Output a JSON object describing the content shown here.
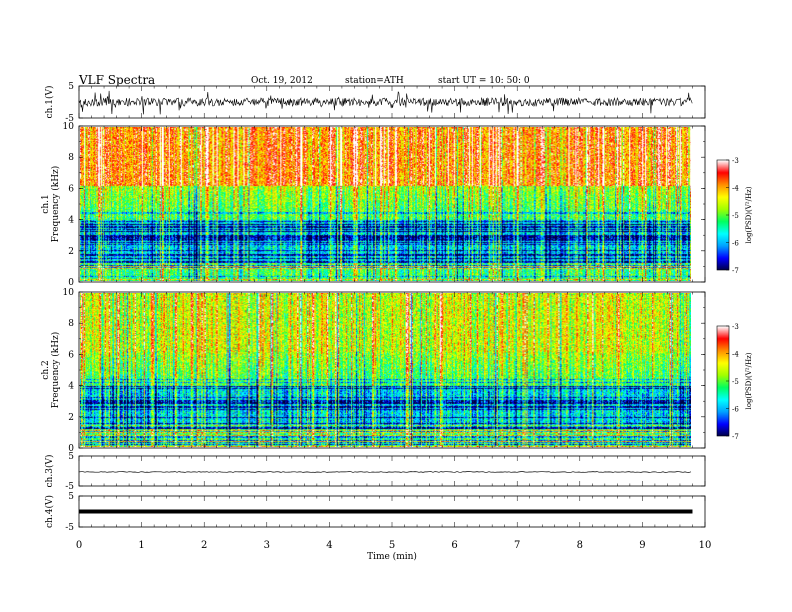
{
  "header": {
    "title": "VLF  Spectra",
    "date": "Oct. 19, 2012",
    "station": "station=ATH",
    "start": "start  UT  =    10: 50: 0"
  },
  "chart_data": [
    {
      "type": "line",
      "panel": "ch1-waveform",
      "ylabel": "ch.1(V)",
      "yticks": [
        "5",
        "-5"
      ],
      "ylim": [
        -5,
        5
      ],
      "xlim": [
        0,
        10
      ],
      "x_end": 9.8,
      "color": "#000000"
    },
    {
      "type": "heatmap",
      "panel": "ch1-spectrogram",
      "ylabel": "ch.1\nFrequency  (kHz)",
      "ylabel_lines": [
        "ch.1",
        "Frequency  (kHz)"
      ],
      "yticks": [
        "0",
        "2",
        "4",
        "6",
        "8",
        "10"
      ],
      "ylim": [
        0,
        10
      ],
      "xlim": [
        0,
        10
      ],
      "x_end": 9.8,
      "colorbar": {
        "label": "log(PSD)(V²/Hz)",
        "ticks": [
          "-3",
          "-4",
          "-5",
          "-6",
          "-7"
        ],
        "range": [
          -7,
          -3
        ]
      }
    },
    {
      "type": "heatmap",
      "panel": "ch2-spectrogram",
      "ylabel": "ch.2\nFrequency  (kHz)",
      "ylabel_lines": [
        "ch.2",
        "Frequency  (kHz)"
      ],
      "yticks": [
        "0",
        "2",
        "4",
        "6",
        "8",
        "10"
      ],
      "ylim": [
        0,
        10
      ],
      "xlim": [
        0,
        10
      ],
      "x_end": 9.8,
      "colorbar": {
        "label": "log(PSD)(V²/Hz)",
        "ticks": [
          "-3",
          "-4",
          "-5",
          "-6",
          "-7"
        ],
        "range": [
          -7,
          -3
        ]
      }
    },
    {
      "type": "line",
      "panel": "ch3-waveform",
      "ylabel": "ch.3(V)",
      "yticks": [
        "5",
        "-5"
      ],
      "ylim": [
        -5,
        5
      ],
      "xlim": [
        0,
        10
      ],
      "x_end": 9.8
    },
    {
      "type": "line",
      "panel": "ch4-waveform",
      "ylabel": "ch.4(V)",
      "yticks": [
        "5",
        "-5"
      ],
      "ylim": [
        -5,
        5
      ],
      "xlim": [
        0,
        10
      ],
      "x_end": 9.8
    }
  ],
  "xaxis": {
    "label": "Time  (min)",
    "ticks": [
      "0",
      "1",
      "2",
      "3",
      "4",
      "5",
      "6",
      "7",
      "8",
      "9",
      "10"
    ]
  },
  "colorscale": [
    "#000040",
    "#0000ff",
    "#00a0ff",
    "#00ffff",
    "#00ff60",
    "#a0ff00",
    "#ffff00",
    "#ff9000",
    "#ff0000",
    "#ffffff"
  ]
}
